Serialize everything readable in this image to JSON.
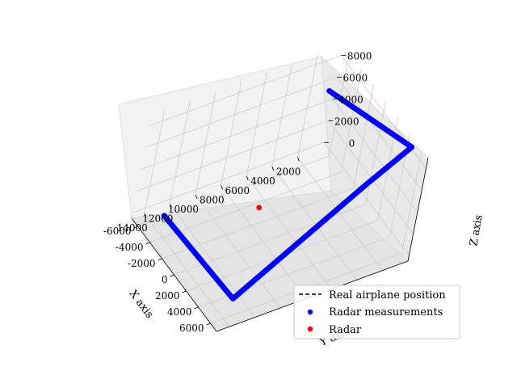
{
  "colors": {
    "trajectory": "#0000ff",
    "radar": "#ff0000",
    "real": "#000000",
    "pane": "#f2f2f2",
    "grid": "#cccccc"
  },
  "chart_data": {
    "type": "scatter",
    "projection": "3d",
    "title": "",
    "xlabel": "X axis",
    "ylabel": "Y axis",
    "zlabel": "Z axis",
    "xlim": [
      -7000,
      7000
    ],
    "ylim": [
      0,
      15000
    ],
    "zlim": [
      -500,
      9000
    ],
    "grid": true,
    "legend": "lower-right",
    "x_ticks": [
      "-6000",
      "-4000",
      "-2000",
      "0",
      "2000",
      "4000",
      "6000"
    ],
    "y_ticks": [
      "2000",
      "4000",
      "6000",
      "8000",
      "10000",
      "12000",
      "14000"
    ],
    "z_ticks": [
      "0",
      "2000",
      "4000",
      "6000",
      "8000"
    ],
    "legend_entries": [
      {
        "label": "Real airplane position",
        "marker": "dashed-line"
      },
      {
        "label": "Radar measurements",
        "marker": "dot"
      },
      {
        "label": "Radar",
        "marker": "dot"
      }
    ],
    "series": [
      {
        "name": "Radar measurements",
        "path": [
          {
            "x": -5600,
            "y": 13200,
            "z": 0
          },
          {
            "x": 4900,
            "y": 12800,
            "z": 0
          },
          {
            "x": 6600,
            "y": 4500,
            "z": 8200
          },
          {
            "x": 5200,
            "y": 400,
            "z": 8800
          },
          {
            "x": -3000,
            "y": 3000,
            "z": 9000
          }
        ]
      },
      {
        "name": "Radar",
        "points": [
          {
            "x": -3000,
            "y": 7000,
            "z": 0
          }
        ]
      }
    ]
  }
}
